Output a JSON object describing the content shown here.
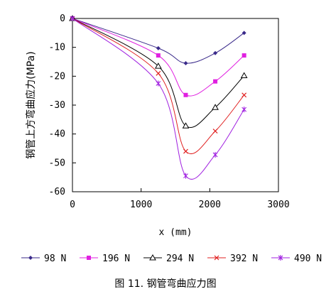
{
  "chart_data": {
    "type": "line",
    "xlabel": "x (mm)",
    "ylabel": "钢管上方弯曲应力(MPa)",
    "xlim": [
      0,
      3000
    ],
    "ylim": [
      -60,
      0
    ],
    "x_ticks": [
      "0",
      "1000",
      "2000",
      "3000"
    ],
    "y_ticks": [
      "0",
      "-10",
      "-20",
      "-30",
      "-40",
      "-50",
      "-60"
    ],
    "grid": false,
    "legend_position": "bottom",
    "x": [
      0,
      1250,
      1650,
      2080,
      2500
    ],
    "series": [
      {
        "name": "98 N",
        "color": "#3a2a8a",
        "marker": "diamond",
        "values": [
          0,
          -10.3,
          -15.5,
          -12.0,
          -5.0
        ]
      },
      {
        "name": "196 N",
        "color": "#e020e0",
        "marker": "square",
        "values": [
          0,
          -12.8,
          -26.5,
          -21.8,
          -12.8
        ]
      },
      {
        "name": "294 N",
        "color": "#000000",
        "marker": "triangle",
        "values": [
          0,
          -16.5,
          -37.2,
          -30.8,
          -19.8
        ]
      },
      {
        "name": "392 N",
        "color": "#e02020",
        "marker": "x",
        "values": [
          0,
          -19.0,
          -46.0,
          -39.0,
          -26.5
        ]
      },
      {
        "name": "490 N",
        "color": "#a020e0",
        "marker": "star",
        "values": [
          0,
          -22.5,
          -54.5,
          -47.2,
          -31.5
        ]
      }
    ],
    "caption": "图 11. 钢管弯曲应力图"
  }
}
